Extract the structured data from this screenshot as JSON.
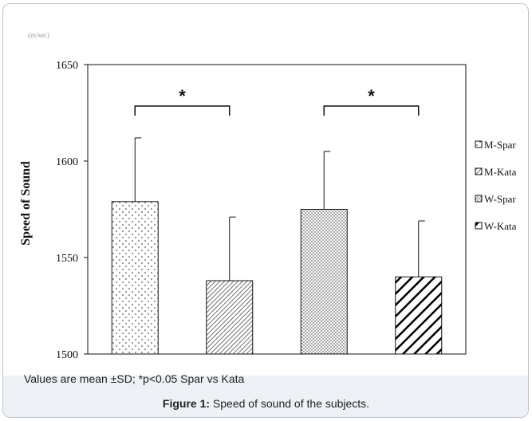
{
  "chart_data": {
    "type": "bar",
    "unit_label": "(m/sec)",
    "ylabel": "Speed of Sound",
    "ylim": [
      1500,
      1650
    ],
    "yticks": [
      1500,
      1550,
      1600,
      1650
    ],
    "grid": false,
    "legend_position": "right",
    "series": [
      {
        "name": "M-Spar",
        "value": 1579,
        "sd": 33,
        "pattern": "sparse-dots"
      },
      {
        "name": "M-Kata",
        "value": 1538,
        "sd": 33,
        "pattern": "fine-diagonal"
      },
      {
        "name": "W-Spar",
        "value": 1575,
        "sd": 30,
        "pattern": "dense-dots"
      },
      {
        "name": "W-Kata",
        "value": 1540,
        "sd": 29,
        "pattern": "bold-diagonal"
      }
    ],
    "significance": [
      {
        "pair": [
          "M-Spar",
          "M-Kata"
        ],
        "label": "*"
      },
      {
        "pair": [
          "W-Spar",
          "W-Kata"
        ],
        "label": "*"
      }
    ]
  },
  "note": "Values are mean ±SD; *p<0.05 Spar vs Kata",
  "caption": {
    "label": "Figure 1:",
    "text": " Speed of sound of the subjects."
  },
  "colors": {
    "card_border": "#b9c4cf",
    "caption_bar": "#edf1f5",
    "ink": "#111111"
  }
}
